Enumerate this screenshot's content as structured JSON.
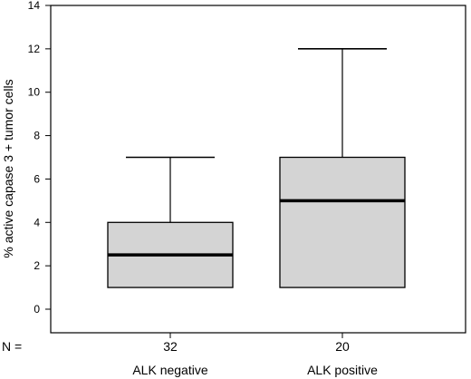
{
  "chart_data": {
    "type": "boxplot",
    "ylabel": "% active capase 3 + tumor cells",
    "ylim": [
      0,
      14
    ],
    "yticks": [
      0,
      2,
      4,
      6,
      8,
      10,
      12,
      14
    ],
    "grid": false,
    "n_prefix": "N =",
    "box_fill": "#d4d4d4",
    "groups": [
      {
        "category": "ALK negative",
        "n": "32",
        "whisker_low": 1,
        "q1": 1,
        "median": 2.5,
        "q3": 4,
        "whisker_high": 7
      },
      {
        "category": "ALK positive",
        "n": "20",
        "whisker_low": 1,
        "q1": 1,
        "median": 5,
        "q3": 7,
        "whisker_high": 12
      }
    ]
  }
}
